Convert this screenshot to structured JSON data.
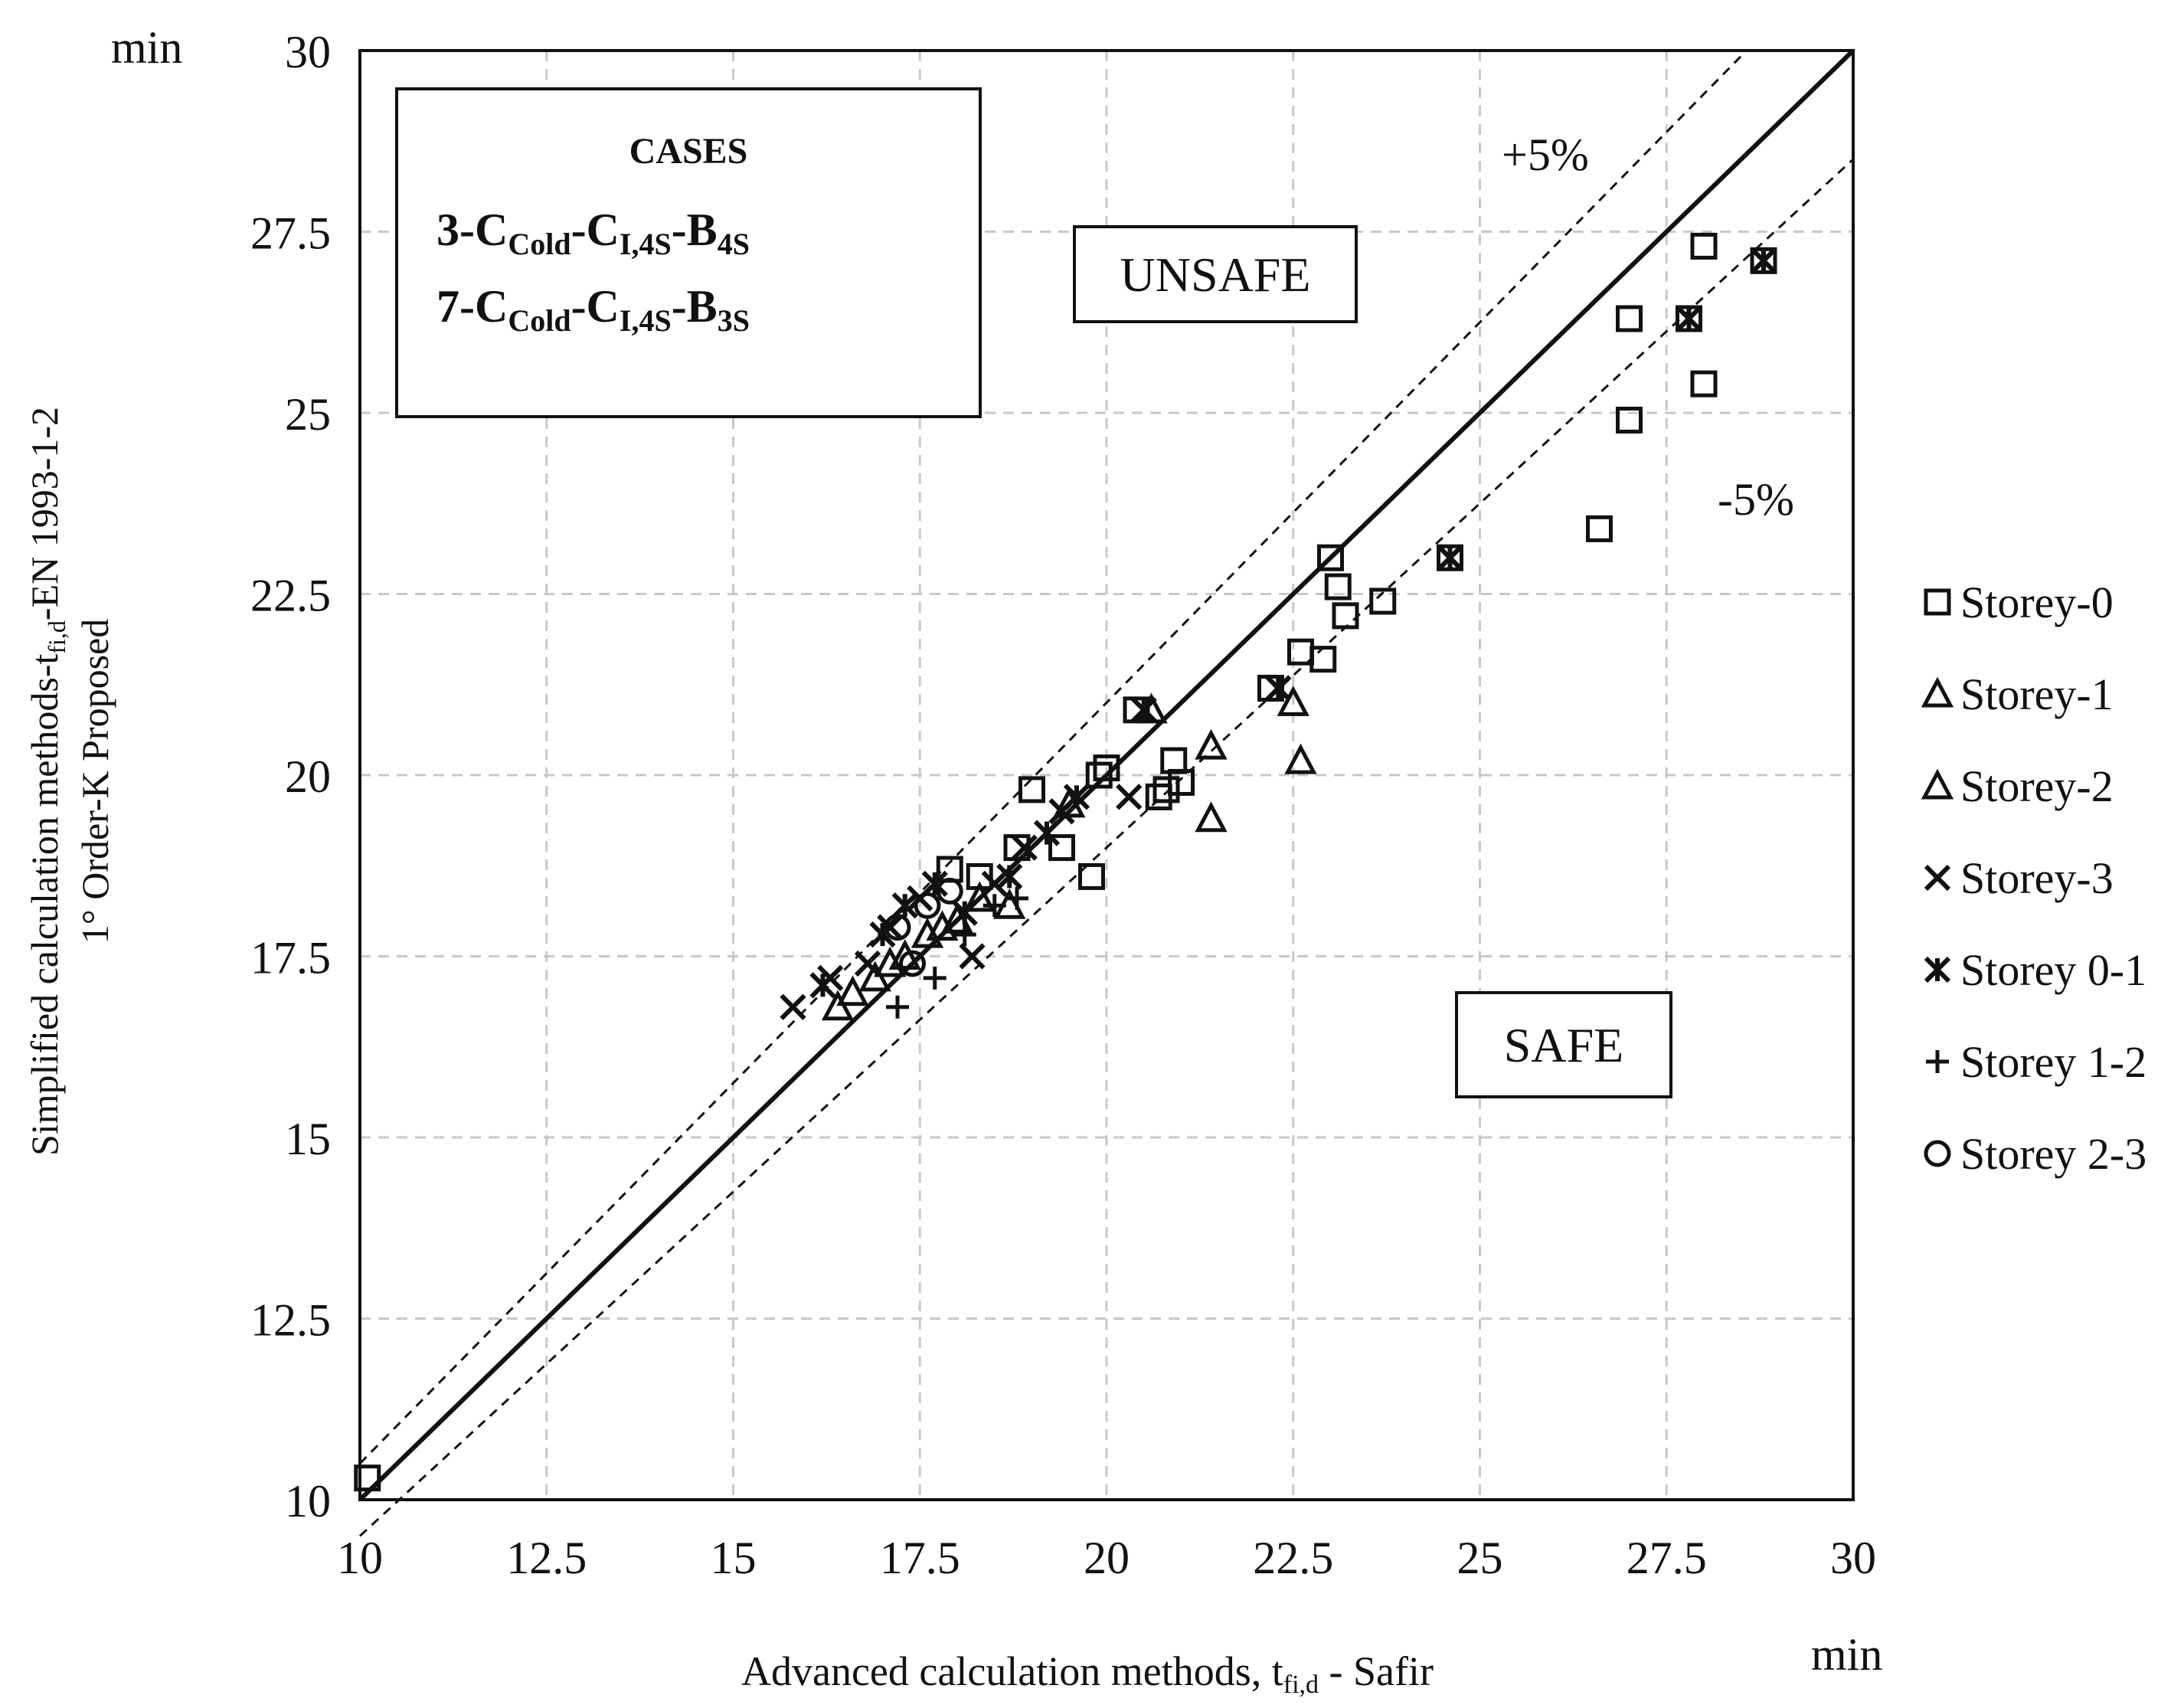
{
  "chart_data": {
    "type": "scatter",
    "units": {
      "x": "min",
      "y": "min"
    },
    "xlabel_main": "Advanced calculation methods, t",
    "xlabel_sub": "fi,d",
    "xlabel_tail": " - Safir",
    "ylabel_line1_main": "Simplified calculation methods-t",
    "ylabel_line1_sub": "fi,d",
    "ylabel_line1_tail": "-EN 1993-1-2",
    "ylabel_line2": "1° Order-K Proposed",
    "xlim": [
      10,
      30
    ],
    "ylim": [
      10,
      30
    ],
    "xticks": [
      "10",
      "12.5",
      "15",
      "17.5",
      "20",
      "22.5",
      "25",
      "27.5",
      "30"
    ],
    "yticks": [
      "10",
      "12.5",
      "15",
      "17.5",
      "20",
      "22.5",
      "25",
      "27.5",
      "30"
    ],
    "tick_values": [
      10,
      12.5,
      15,
      17.5,
      20,
      22.5,
      25,
      27.5,
      30
    ],
    "grid": true,
    "reference_lines": [
      {
        "name": "equality",
        "slope": 1.0,
        "style": "solid"
      },
      {
        "name": "plus5",
        "slope": 1.05,
        "style": "dashed",
        "label": "+5%"
      },
      {
        "name": "minus5",
        "slope": 0.95,
        "style": "dashed",
        "label": "-5%"
      }
    ],
    "region_labels": {
      "unsafe": "UNSAFE",
      "safe": "SAFE"
    },
    "cases_box": {
      "title": "CASES",
      "lines": [
        {
          "prefix": "3-C",
          "s1": "Cold",
          "m1": "-C",
          "s2": "I,4S",
          "m2": "-B",
          "s3": "4S"
        },
        {
          "prefix": "7-C",
          "s1": "Cold",
          "m1": "-C",
          "s2": "I,4S",
          "m2": "-B",
          "s3": "3S"
        }
      ]
    },
    "legend_position": "right",
    "series": [
      {
        "name": "Storey-0",
        "marker": "square",
        "points": [
          [
            10.1,
            10.3
          ],
          [
            19.0,
            19.8
          ],
          [
            19.9,
            20.0
          ],
          [
            20.0,
            20.1
          ],
          [
            20.4,
            20.9
          ],
          [
            20.7,
            19.7
          ],
          [
            20.9,
            20.2
          ],
          [
            21.0,
            19.9
          ],
          [
            22.2,
            21.2
          ],
          [
            22.6,
            21.7
          ],
          [
            22.9,
            21.6
          ],
          [
            23.0,
            23.0
          ],
          [
            23.1,
            22.6
          ],
          [
            23.2,
            22.2
          ],
          [
            23.7,
            22.4
          ],
          [
            24.6,
            23.0
          ],
          [
            26.6,
            23.4
          ],
          [
            27.0,
            26.3
          ],
          [
            27.0,
            24.9
          ],
          [
            28.0,
            27.3
          ],
          [
            28.0,
            25.4
          ],
          [
            27.8,
            26.3
          ],
          [
            28.8,
            27.1
          ],
          [
            17.9,
            18.7
          ],
          [
            18.3,
            18.6
          ],
          [
            18.8,
            19.0
          ],
          [
            19.4,
            19.0
          ],
          [
            19.8,
            18.6
          ],
          [
            20.8,
            19.8
          ]
        ]
      },
      {
        "name": "Storey-1",
        "marker": "triangle",
        "points": [
          [
            16.4,
            16.8
          ],
          [
            16.9,
            17.2
          ],
          [
            17.3,
            17.5
          ],
          [
            17.6,
            17.8
          ],
          [
            18.0,
            18.0
          ],
          [
            20.6,
            20.9
          ],
          [
            21.4,
            20.4
          ],
          [
            21.4,
            19.4
          ],
          [
            22.5,
            21.0
          ],
          [
            22.6,
            20.2
          ]
        ]
      },
      {
        "name": "Storey-2",
        "marker": "triangle",
        "points": [
          [
            16.6,
            17.0
          ],
          [
            17.1,
            17.4
          ],
          [
            17.8,
            17.9
          ],
          [
            18.3,
            18.3
          ],
          [
            18.7,
            18.2
          ],
          [
            19.5,
            19.6
          ]
        ]
      },
      {
        "name": "Storey-3",
        "marker": "x",
        "points": [
          [
            15.8,
            16.8
          ],
          [
            16.3,
            17.2
          ],
          [
            16.8,
            17.4
          ],
          [
            17.1,
            17.9
          ],
          [
            17.5,
            18.3
          ],
          [
            18.2,
            17.5
          ],
          [
            18.5,
            18.5
          ],
          [
            18.9,
            19.0
          ],
          [
            19.4,
            19.5
          ],
          [
            20.3,
            19.7
          ],
          [
            22.3,
            21.2
          ],
          [
            24.6,
            23.0
          ],
          [
            27.8,
            26.3
          ],
          [
            28.8,
            27.1
          ]
        ]
      },
      {
        "name": "Storey 0-1",
        "marker": "asterisk",
        "points": [
          [
            16.2,
            17.1
          ],
          [
            17.0,
            17.8
          ],
          [
            17.3,
            18.2
          ],
          [
            17.7,
            18.5
          ],
          [
            18.1,
            18.1
          ],
          [
            18.7,
            18.6
          ],
          [
            19.2,
            19.2
          ],
          [
            19.6,
            19.7
          ],
          [
            20.5,
            20.9
          ],
          [
            22.3,
            21.2
          ],
          [
            24.6,
            23.0
          ],
          [
            27.8,
            26.3
          ],
          [
            28.8,
            27.1
          ]
        ]
      },
      {
        "name": "Storey 1-2",
        "marker": "plus",
        "points": [
          [
            17.2,
            16.8
          ],
          [
            17.7,
            17.2
          ],
          [
            18.1,
            17.8
          ],
          [
            18.5,
            18.2
          ],
          [
            18.8,
            18.3
          ]
        ]
      },
      {
        "name": "Storey 2-3",
        "marker": "circle",
        "points": [
          [
            17.4,
            17.4
          ],
          [
            17.6,
            18.2
          ],
          [
            17.2,
            17.9
          ],
          [
            17.9,
            18.4
          ]
        ]
      }
    ]
  }
}
